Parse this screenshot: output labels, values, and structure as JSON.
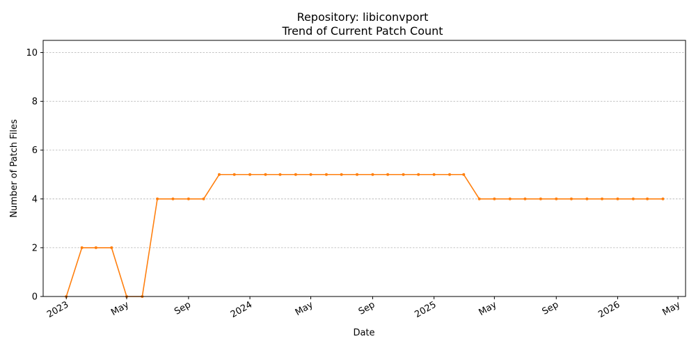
{
  "chart_data": {
    "type": "line",
    "title": "Repository: libiconvport",
    "subtitle": "Trend of Current Patch Count",
    "xlabel": "Date",
    "ylabel": "Number of Patch Files",
    "ylim": [
      0,
      10.5
    ],
    "xlim": [
      "2022-11-16",
      "2026-05-16"
    ],
    "y_ticks": [
      0,
      2,
      4,
      6,
      8,
      10
    ],
    "x_ticks": [
      {
        "date": "2023-01-01",
        "label": "2023"
      },
      {
        "date": "2023-05-01",
        "label": "May"
      },
      {
        "date": "2023-09-01",
        "label": "Sep"
      },
      {
        "date": "2024-01-01",
        "label": "2024"
      },
      {
        "date": "2024-05-01",
        "label": "May"
      },
      {
        "date": "2024-09-01",
        "label": "Sep"
      },
      {
        "date": "2025-01-01",
        "label": "2025"
      },
      {
        "date": "2025-05-01",
        "label": "May"
      },
      {
        "date": "2025-09-01",
        "label": "Sep"
      },
      {
        "date": "2026-01-01",
        "label": "2026"
      },
      {
        "date": "2026-05-01",
        "label": "May"
      }
    ],
    "grid": "y",
    "color": "#ff7f0e",
    "series": [
      {
        "x": [
          "2023-01-01",
          "2023-02-01",
          "2023-03-01",
          "2023-04-01",
          "2023-05-01",
          "2023-06-01",
          "2023-07-01",
          "2023-08-01",
          "2023-09-01",
          "2023-10-01",
          "2023-11-01",
          "2023-12-01",
          "2024-01-01",
          "2024-02-01",
          "2024-03-01",
          "2024-04-01",
          "2024-05-01",
          "2024-06-01",
          "2024-07-01",
          "2024-08-01",
          "2024-09-01",
          "2024-10-01",
          "2024-11-01",
          "2024-12-01",
          "2025-01-01",
          "2025-02-01",
          "2025-03-01",
          "2025-04-01",
          "2025-05-01",
          "2025-06-01",
          "2025-07-01",
          "2025-08-01",
          "2025-09-01",
          "2025-10-01",
          "2025-11-01",
          "2025-12-01",
          "2026-01-01",
          "2026-02-01",
          "2026-03-01",
          "2026-04-01"
        ],
        "values": [
          0,
          2,
          2,
          2,
          0,
          0,
          4,
          4,
          4,
          4,
          5,
          5,
          5,
          5,
          5,
          5,
          5,
          5,
          5,
          5,
          5,
          5,
          5,
          5,
          5,
          5,
          5,
          4,
          4,
          4,
          4,
          4,
          4,
          4,
          4,
          4,
          4,
          4,
          4,
          4
        ]
      }
    ]
  }
}
